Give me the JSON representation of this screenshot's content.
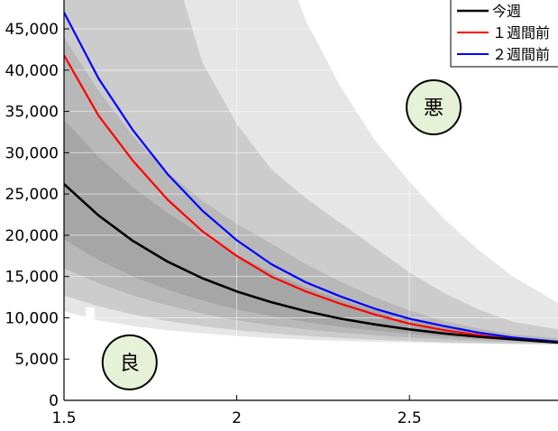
{
  "chart_data": {
    "type": "line",
    "title": "",
    "xlabel": "",
    "ylabel": "",
    "xlim": [
      1.5,
      2.93
    ],
    "ylim": [
      0,
      48500
    ],
    "x_ticks": [
      1.5,
      2,
      2.5
    ],
    "x_tick_labels": [
      "1.5",
      "2",
      "2.5"
    ],
    "y_ticks": [
      0,
      5000,
      10000,
      15000,
      20000,
      25000,
      30000,
      35000,
      40000,
      45000
    ],
    "y_tick_labels": [
      "0",
      "5,000",
      "10,000",
      "15,000",
      "20,000",
      "25,000",
      "30,000",
      "35,000",
      "40,000",
      "45,000"
    ],
    "grid": true,
    "x": [
      1.5,
      1.6,
      1.7,
      1.8,
      1.9,
      2.0,
      2.1,
      2.2,
      2.3,
      2.4,
      2.5,
      2.6,
      2.7,
      2.8,
      2.93
    ],
    "series": [
      {
        "name": "今週",
        "color": "#000000",
        "values": [
          26200,
          22400,
          19300,
          16800,
          14800,
          13200,
          11900,
          10800,
          9900,
          9200,
          8600,
          8100,
          7700,
          7400,
          7000
        ]
      },
      {
        "name": "１週間前",
        "color": "#ff0000",
        "values": [
          41800,
          34500,
          29000,
          24300,
          20500,
          17500,
          15000,
          13200,
          11700,
          10400,
          9300,
          8500,
          7900,
          7400,
          7000
        ]
      },
      {
        "name": "２週間前",
        "color": "#0000ff",
        "values": [
          47000,
          39000,
          32700,
          27400,
          23000,
          19400,
          16500,
          14300,
          12600,
          11100,
          9900,
          9000,
          8200,
          7600,
          7100
        ]
      }
    ],
    "bands": [
      {
        "fill": "#e6e6e6",
        "lower": [
          10800,
          9700,
          9000,
          8500,
          8100,
          7800,
          7550,
          7350,
          7200,
          7100,
          7000,
          6900,
          6850,
          6800,
          6750
        ],
        "upper": [
          80000,
          80000,
          80000,
          80000,
          80000,
          71000,
          57000,
          46000,
          38000,
          31500,
          26500,
          22000,
          18200,
          15000,
          11800
        ]
      },
      {
        "fill": "#cccccc",
        "lower": [
          12700,
          11400,
          10400,
          9600,
          9000,
          8500,
          8100,
          7800,
          7550,
          7350,
          7200,
          7050,
          6950,
          6850,
          6800
        ],
        "upper": [
          80000,
          80000,
          80000,
          55000,
          41000,
          33500,
          28000,
          24500,
          21500,
          18500,
          15500,
          13000,
          11000,
          9500,
          8600
        ]
      },
      {
        "fill": "#b8b8b8",
        "lower": [
          16000,
          14200,
          12700,
          11500,
          10500,
          9700,
          9100,
          8600,
          8200,
          7900,
          7600,
          7400,
          7200,
          7050,
          6900
        ],
        "upper": [
          44000,
          37500,
          32000,
          27600,
          24200,
          21400,
          19000,
          16500,
          14400,
          12500,
          10900,
          9600,
          8700,
          8000,
          7500
        ]
      },
      {
        "fill": "#a6a6a6",
        "lower": [
          19500,
          17000,
          15000,
          13400,
          12100,
          11000,
          10200,
          9500,
          8900,
          8450,
          8050,
          7700,
          7450,
          7250,
          7000
        ],
        "upper": [
          34000,
          29500,
          25800,
          22700,
          20000,
          17600,
          15500,
          13700,
          12200,
          10900,
          9800,
          8900,
          8200,
          7700,
          7200
        ]
      }
    ],
    "legend": {
      "position": "top-right",
      "entries": [
        "今週",
        "１週間前",
        "２週間前"
      ]
    },
    "annotations": [
      {
        "text": "悪",
        "x": 2.57,
        "y": 35500
      },
      {
        "text": "良",
        "x": 1.69,
        "y": 4600
      }
    ]
  }
}
